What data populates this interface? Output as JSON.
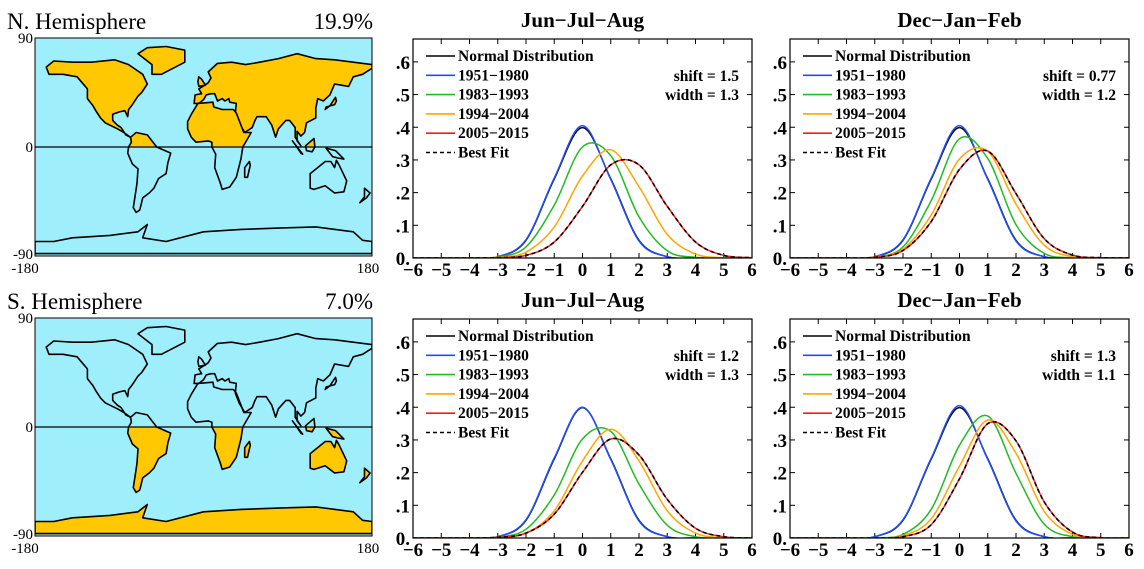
{
  "colors": {
    "land_highlight": "#ffc800",
    "ocean": "#9feefc",
    "land_other": "#9feefc"
  },
  "maps": [
    {
      "title": "N. Hemisphere",
      "percent": "19.9%",
      "highlight": "north",
      "lat_ticks": [
        "90",
        "0",
        "-90"
      ],
      "lon_ticks": [
        "-180",
        "180"
      ]
    },
    {
      "title": "S. Hemisphere",
      "percent": "7.0%",
      "highlight": "south",
      "lat_ticks": [
        "90",
        "0",
        "-90"
      ],
      "lon_ticks": [
        "-180",
        "180"
      ]
    }
  ],
  "chart_data": [
    {
      "type": "line",
      "title": "Jun−Jul−Aug",
      "xlim": [
        -6,
        6
      ],
      "ylim": [
        0,
        0.67
      ],
      "grid": false,
      "legend": "top-left",
      "xtick_labels": [
        "−6",
        "−5",
        "−4",
        "−3",
        "−2",
        "−1",
        "0",
        "1",
        "2",
        "3",
        "4",
        "5",
        "6"
      ],
      "ytick_labels": [
        "0.",
        ".1",
        ".2",
        ".3",
        ".4",
        ".5",
        ".6"
      ],
      "annotations": [
        "shift = 1.5",
        "width = 1.3"
      ],
      "x": [
        -6,
        -5,
        -4,
        -3,
        -2,
        -1,
        0,
        1,
        2,
        3,
        4,
        5,
        6
      ],
      "series": [
        {
          "name": "Normal Distribution",
          "color": "#000000",
          "dash": false,
          "values": [
            0,
            0,
            0,
            0.004,
            0.054,
            0.242,
            0.399,
            0.242,
            0.054,
            0.004,
            0,
            0,
            0
          ]
        },
        {
          "name": "1951−1980",
          "color": "#1f4fff",
          "dash": false,
          "values": [
            0,
            0,
            0,
            0.004,
            0.056,
            0.245,
            0.405,
            0.24,
            0.052,
            0.004,
            0,
            0,
            0
          ]
        },
        {
          "name": "1983−1993",
          "color": "#22bb22",
          "dash": false,
          "values": [
            0,
            0,
            0,
            0.003,
            0.034,
            0.162,
            0.34,
            0.313,
            0.126,
            0.022,
            0.002,
            0,
            0
          ]
        },
        {
          "name": "1994−2004",
          "color": "#ffa500",
          "dash": false,
          "values": [
            0,
            0,
            0,
            0.002,
            0.018,
            0.095,
            0.251,
            0.331,
            0.218,
            0.072,
            0.012,
            0.001,
            0
          ]
        },
        {
          "name": "2005−2015",
          "color": "#ff1a1a",
          "dash": false,
          "values": [
            0,
            0,
            0,
            0.001,
            0.008,
            0.049,
            0.158,
            0.285,
            0.285,
            0.158,
            0.049,
            0.008,
            0.001
          ]
        },
        {
          "name": "Best Fit",
          "color": "#000000",
          "dash": true,
          "values": [
            0,
            0,
            0,
            0.001,
            0.008,
            0.049,
            0.158,
            0.285,
            0.285,
            0.158,
            0.049,
            0.008,
            0.001
          ]
        }
      ]
    },
    {
      "type": "line",
      "title": "Dec−Jan−Feb",
      "xlim": [
        -6,
        6
      ],
      "ylim": [
        0,
        0.67
      ],
      "grid": false,
      "legend": "top-left",
      "xtick_labels": [
        "−6",
        "−5",
        "−4",
        "−3",
        "−2",
        "−1",
        "0",
        "1",
        "2",
        "3",
        "4",
        "5",
        "6"
      ],
      "ytick_labels": [
        "0.",
        ".1",
        ".2",
        ".3",
        ".4",
        ".5",
        ".6"
      ],
      "annotations": [
        "shift = 0.77",
        "width = 1.2"
      ],
      "x": [
        -6,
        -5,
        -4,
        -3,
        -2,
        -1,
        0,
        1,
        2,
        3,
        4,
        5,
        6
      ],
      "series": [
        {
          "name": "Normal Distribution",
          "color": "#000000",
          "dash": false,
          "values": [
            0,
            0,
            0,
            0.004,
            0.054,
            0.242,
            0.399,
            0.242,
            0.054,
            0.004,
            0,
            0,
            0
          ]
        },
        {
          "name": "1951−1980",
          "color": "#1f4fff",
          "dash": false,
          "values": [
            0,
            0,
            0,
            0.004,
            0.056,
            0.245,
            0.405,
            0.24,
            0.052,
            0.004,
            0,
            0,
            0
          ]
        },
        {
          "name": "1983−1993",
          "color": "#22bb22",
          "dash": false,
          "values": [
            0,
            0,
            0,
            0.003,
            0.034,
            0.176,
            0.365,
            0.304,
            0.102,
            0.014,
            0.001,
            0,
            0
          ]
        },
        {
          "name": "1994−2004",
          "color": "#ffa500",
          "dash": false,
          "values": [
            0,
            0,
            0,
            0.003,
            0.027,
            0.132,
            0.303,
            0.326,
            0.165,
            0.039,
            0.004,
            0,
            0
          ]
        },
        {
          "name": "2005−2015",
          "color": "#ff1a1a",
          "dash": false,
          "values": [
            0,
            0,
            0,
            0.002,
            0.023,
            0.112,
            0.271,
            0.327,
            0.197,
            0.059,
            0.009,
            0.001,
            0
          ]
        },
        {
          "name": "Best Fit",
          "color": "#000000",
          "dash": true,
          "values": [
            0,
            0,
            0,
            0.002,
            0.023,
            0.112,
            0.271,
            0.327,
            0.197,
            0.059,
            0.009,
            0.001,
            0
          ]
        }
      ]
    },
    {
      "type": "line",
      "title": "Jun−Jul−Aug",
      "xlim": [
        -6,
        6
      ],
      "ylim": [
        0,
        0.67
      ],
      "grid": false,
      "legend": "top-left",
      "xtick_labels": [
        "−6",
        "−5",
        "−4",
        "−3",
        "−2",
        "−1",
        "0",
        "1",
        "2",
        "3",
        "4",
        "5",
        "6"
      ],
      "ytick_labels": [
        "0.",
        ".1",
        ".2",
        ".3",
        ".4",
        ".5",
        ".6"
      ],
      "annotations": [
        "shift = 1.2",
        "width = 1.3"
      ],
      "x": [
        -6,
        -5,
        -4,
        -3,
        -2,
        -1,
        0,
        1,
        2,
        3,
        4,
        5,
        6
      ],
      "series": [
        {
          "name": "Normal Distribution",
          "color": "#000000",
          "dash": false,
          "values": [
            0,
            0,
            0,
            0.004,
            0.054,
            0.242,
            0.399,
            0.242,
            0.054,
            0.004,
            0,
            0,
            0
          ]
        },
        {
          "name": "1951−1980",
          "color": "#1f4fff",
          "dash": false,
          "values": [
            0,
            0,
            0,
            0.004,
            0.056,
            0.245,
            0.4,
            0.24,
            0.052,
            0.004,
            0,
            0,
            0
          ]
        },
        {
          "name": "1983−1993",
          "color": "#22bb22",
          "dash": false,
          "values": [
            0,
            0,
            0,
            0.003,
            0.027,
            0.132,
            0.303,
            0.326,
            0.165,
            0.039,
            0.004,
            0,
            0
          ]
        },
        {
          "name": "1994−2004",
          "color": "#ffa500",
          "dash": false,
          "values": [
            0,
            0,
            0,
            0.001,
            0.015,
            0.083,
            0.236,
            0.333,
            0.236,
            0.083,
            0.015,
            0.001,
            0
          ]
        },
        {
          "name": "2005−2015",
          "color": "#ff1a1a",
          "dash": false,
          "values": [
            0,
            0,
            0,
            0.002,
            0.015,
            0.073,
            0.201,
            0.303,
            0.254,
            0.118,
            0.03,
            0.004,
            0
          ]
        },
        {
          "name": "Best Fit",
          "color": "#000000",
          "dash": true,
          "values": [
            0,
            0,
            0,
            0.002,
            0.015,
            0.073,
            0.201,
            0.303,
            0.254,
            0.118,
            0.03,
            0.004,
            0
          ]
        }
      ]
    },
    {
      "type": "line",
      "title": "Dec−Jan−Feb",
      "xlim": [
        -6,
        6
      ],
      "ylim": [
        0,
        0.67
      ],
      "grid": false,
      "legend": "top-left",
      "xtick_labels": [
        "−6",
        "−5",
        "−4",
        "−3",
        "−2",
        "−1",
        "0",
        "1",
        "2",
        "3",
        "4",
        "5",
        "6"
      ],
      "ytick_labels": [
        "0.",
        ".1",
        ".2",
        ".3",
        ".4",
        ".5",
        ".6"
      ],
      "annotations": [
        "shift = 1.3",
        "width = 1.1"
      ],
      "x": [
        -6,
        -5,
        -4,
        -3,
        -2,
        -1,
        0,
        1,
        2,
        3,
        4,
        5,
        6
      ],
      "series": [
        {
          "name": "Normal Distribution",
          "color": "#000000",
          "dash": false,
          "values": [
            0,
            0,
            0,
            0.004,
            0.054,
            0.242,
            0.399,
            0.242,
            0.054,
            0.004,
            0,
            0,
            0
          ]
        },
        {
          "name": "1951−1980",
          "color": "#1f4fff",
          "dash": false,
          "values": [
            0,
            0,
            0,
            0.004,
            0.056,
            0.245,
            0.405,
            0.24,
            0.052,
            0.004,
            0,
            0,
            0
          ]
        },
        {
          "name": "1983−1993",
          "color": "#22bb22",
          "dash": false,
          "values": [
            0,
            0,
            0,
            0.001,
            0.011,
            0.088,
            0.284,
            0.373,
            0.198,
            0.042,
            0.004,
            0,
            0
          ]
        },
        {
          "name": "1994−2004",
          "color": "#ffa500",
          "dash": false,
          "values": [
            0,
            0,
            0,
            0,
            0.007,
            0.059,
            0.22,
            0.361,
            0.259,
            0.081,
            0.011,
            0.001,
            0
          ]
        },
        {
          "name": "2005−2015",
          "color": "#ff1a1a",
          "dash": false,
          "values": [
            0,
            0,
            0,
            0,
            0.004,
            0.041,
            0.181,
            0.35,
            0.297,
            0.11,
            0.018,
            0.001,
            0
          ]
        },
        {
          "name": "Best Fit",
          "color": "#000000",
          "dash": true,
          "values": [
            0,
            0,
            0,
            0,
            0.004,
            0.041,
            0.181,
            0.35,
            0.297,
            0.11,
            0.018,
            0.001,
            0
          ]
        }
      ]
    }
  ]
}
